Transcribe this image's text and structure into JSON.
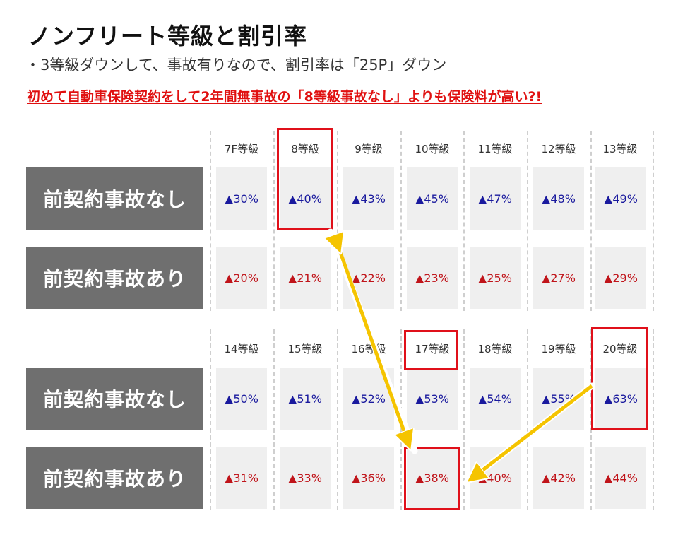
{
  "title": "ノンフリート等級と割引率",
  "subtitle": "・3等級ダウンして、事故有りなので、割引率は「25P」ダウン",
  "warning": "初めて自動車保険契約をして2年間無事故の「8等級事故なし」よりも保険料が高い?!",
  "row_labels": {
    "no_accident": "前契約事故なし",
    "accident": "前契約事故あり"
  },
  "colors": {
    "blue": "#1a1a9e",
    "red": "#c0141a",
    "highlight": "#e0101a",
    "arrow": "#f5c400"
  },
  "table1": {
    "grades": [
      "7F等級",
      "8等級",
      "9等級",
      "10等級",
      "11等級",
      "12等級",
      "13等級"
    ],
    "no_accident": [
      "▲30%",
      "▲40%",
      "▲43%",
      "▲45%",
      "▲47%",
      "▲48%",
      "▲49%"
    ],
    "accident": [
      "▲20%",
      "▲21%",
      "▲22%",
      "▲23%",
      "▲25%",
      "▲27%",
      "▲29%"
    ]
  },
  "table2": {
    "grades": [
      "14等級",
      "15等級",
      "16等級",
      "17等級",
      "18等級",
      "19等級",
      "20等級"
    ],
    "no_accident": [
      "▲50%",
      "▲51%",
      "▲52%",
      "▲53%",
      "▲54%",
      "▲55%",
      "▲63%"
    ],
    "accident": [
      "▲31%",
      "▲33%",
      "▲36%",
      "▲38%",
      "▲40%",
      "▲42%",
      "▲44%"
    ]
  }
}
